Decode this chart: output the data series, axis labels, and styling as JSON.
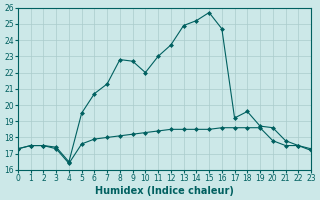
{
  "xlabel": "Humidex (Indice chaleur)",
  "bg_color": "#cce8e8",
  "line_color": "#006060",
  "grid_color": "#aacccc",
  "xlim": [
    0,
    23
  ],
  "ylim": [
    16,
    26
  ],
  "xticks": [
    0,
    1,
    2,
    3,
    4,
    5,
    6,
    7,
    8,
    9,
    10,
    11,
    12,
    13,
    14,
    15,
    16,
    17,
    18,
    19,
    20,
    21,
    22,
    23
  ],
  "yticks": [
    16,
    17,
    18,
    19,
    20,
    21,
    22,
    23,
    24,
    25,
    26
  ],
  "series1_x": [
    0,
    1,
    2,
    3,
    4,
    5,
    6,
    7,
    8,
    9,
    10,
    11,
    12,
    13,
    14,
    15,
    16,
    17,
    18,
    19,
    20,
    21,
    22,
    23
  ],
  "series1_y": [
    17.3,
    17.5,
    17.5,
    17.4,
    16.5,
    19.5,
    20.7,
    21.3,
    22.8,
    22.7,
    22.0,
    23.0,
    23.7,
    24.9,
    25.2,
    25.7,
    24.7,
    19.2,
    19.6,
    18.7,
    18.6,
    17.8,
    17.5,
    17.3
  ],
  "series2_x": [
    0,
    1,
    2,
    3,
    4,
    5,
    6,
    7,
    8,
    9,
    10,
    11,
    12,
    13,
    14,
    15,
    16,
    17,
    18,
    19,
    20,
    21,
    22,
    23
  ],
  "series2_y": [
    17.3,
    17.5,
    17.5,
    17.3,
    16.4,
    17.6,
    17.9,
    18.0,
    18.1,
    18.2,
    18.3,
    18.4,
    18.5,
    18.5,
    18.5,
    18.5,
    18.6,
    18.6,
    18.6,
    18.6,
    17.8,
    17.5,
    17.5,
    17.2
  ]
}
